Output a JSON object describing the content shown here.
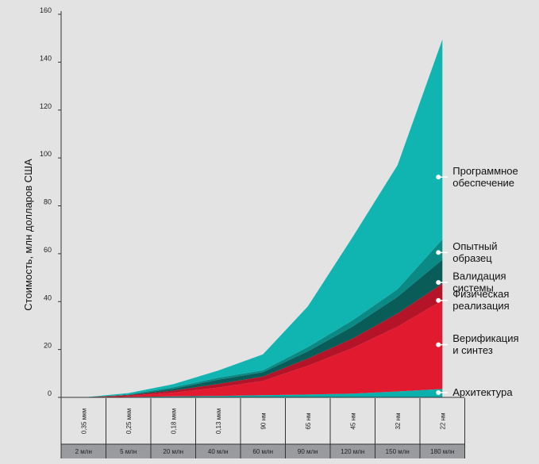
{
  "chart_data": {
    "type": "area",
    "ylabel": "Стоимость, млн долларов США",
    "ylim": [
      0,
      160
    ],
    "y_ticks": [
      "0",
      "20",
      "40",
      "60",
      "80",
      "100",
      "120",
      "140",
      "160"
    ],
    "x_nodes": [
      "0,35 мкм",
      "0,25 мкм",
      "0,18 мкм",
      "0,13 мкм",
      "90 нм",
      "65 нм",
      "45 нм",
      "32 нм",
      "22 нм"
    ],
    "x_gates": [
      "2 млн",
      "5 млн",
      "20 млн",
      "40 млн",
      "60 млн",
      "90 млн",
      "120 млн",
      "150 млн",
      "180 млн"
    ],
    "stacking": "cumulative",
    "series": [
      {
        "name": "Архитектура",
        "color": "#0bb0ad",
        "values": [
          0,
          0.2,
          0.4,
          0.6,
          0.9,
          1.2,
          1.6,
          2.5,
          3.5
        ]
      },
      {
        "name": "Верификация и синтез",
        "color": "#e21a2f",
        "values": [
          0,
          0.4,
          1.6,
          3.5,
          6,
          12,
          19,
          27,
          37
        ]
      },
      {
        "name": "Физическая реализация",
        "color": "#b51328",
        "values": [
          0,
          0.3,
          0.8,
          1.5,
          1.8,
          3,
          4,
          5.5,
          7
        ]
      },
      {
        "name": "Валидация системы",
        "color": "#0a5c59",
        "values": [
          0,
          0.2,
          0.8,
          1.8,
          1.8,
          3,
          5,
          7,
          10
        ]
      },
      {
        "name": "Опытный образец",
        "color": "#0b8985",
        "values": [
          0,
          0.2,
          0.6,
          0.8,
          0.8,
          1.8,
          2.6,
          3.2,
          8.5
        ]
      },
      {
        "name": "Программное обеспечение",
        "color": "#10b5b1",
        "values": [
          0,
          0.5,
          1.3,
          3,
          6.7,
          17,
          34.8,
          51.8,
          83.5
        ]
      }
    ],
    "legend": [
      {
        "lines": [
          "Программное",
          "обеспечение"
        ]
      },
      {
        "lines": [
          "Опытный",
          "образец"
        ]
      },
      {
        "lines": [
          "Валидация",
          "системы"
        ]
      },
      {
        "lines": [
          "Физическая",
          "реализация"
        ]
      },
      {
        "lines": [
          "Верификация",
          "и синтез"
        ]
      },
      {
        "lines": [
          "Архитектура"
        ]
      }
    ],
    "legend_anchor_values": [
      92,
      60.5,
      48,
      40.5,
      22,
      2
    ]
  }
}
